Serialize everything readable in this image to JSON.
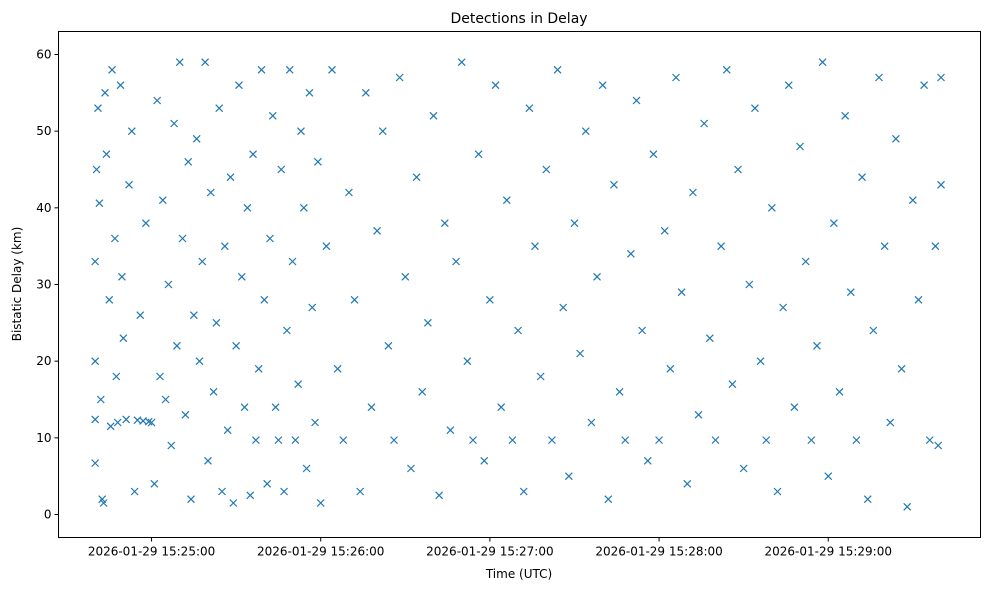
{
  "chart_data": {
    "type": "scatter",
    "title": "Detections in Delay",
    "xlabel": "Time (UTC)",
    "ylabel": "Bistatic Delay (km)",
    "marker": "x",
    "color": "#1f77b4",
    "x_units": "seconds after 2026-01-29 15:24:40 UTC",
    "xlim": [
      -13,
      314
    ],
    "ylim": [
      -3,
      63
    ],
    "xticks": [
      {
        "value": 20,
        "label": "2026-01-29 15:25:00"
      },
      {
        "value": 80,
        "label": "2026-01-29 15:26:00"
      },
      {
        "value": 140,
        "label": "2026-01-29 15:27:00"
      },
      {
        "value": 200,
        "label": "2026-01-29 15:28:00"
      },
      {
        "value": 260,
        "label": "2026-01-29 15:29:00"
      }
    ],
    "yticks": [
      0,
      10,
      20,
      30,
      40,
      50,
      60
    ],
    "grid": false,
    "points": [
      [
        0,
        6.7
      ],
      [
        0,
        12.4
      ],
      [
        0,
        20
      ],
      [
        0,
        33
      ],
      [
        0.5,
        45
      ],
      [
        1,
        53
      ],
      [
        1.5,
        40.6
      ],
      [
        2,
        15
      ],
      [
        2.5,
        2
      ],
      [
        3,
        1.5
      ],
      [
        3.5,
        55
      ],
      [
        4,
        47
      ],
      [
        5,
        28
      ],
      [
        5.5,
        11.5
      ],
      [
        6,
        58
      ],
      [
        7,
        36
      ],
      [
        7.5,
        18
      ],
      [
        8,
        12
      ],
      [
        9,
        56
      ],
      [
        9.5,
        31
      ],
      [
        10,
        23
      ],
      [
        11,
        12.4
      ],
      [
        12,
        43
      ],
      [
        13,
        50
      ],
      [
        14,
        3
      ],
      [
        15,
        12.3
      ],
      [
        16,
        26
      ],
      [
        17,
        12.2
      ],
      [
        18,
        38
      ],
      [
        19,
        12.1
      ],
      [
        20,
        12
      ],
      [
        21,
        4
      ],
      [
        22,
        54
      ],
      [
        23,
        18
      ],
      [
        24,
        41
      ],
      [
        25,
        15
      ],
      [
        26,
        30
      ],
      [
        27,
        9
      ],
      [
        28,
        51
      ],
      [
        29,
        22
      ],
      [
        30,
        59
      ],
      [
        31,
        36
      ],
      [
        32,
        13
      ],
      [
        33,
        46
      ],
      [
        34,
        2
      ],
      [
        35,
        26
      ],
      [
        36,
        49
      ],
      [
        37,
        20
      ],
      [
        38,
        33
      ],
      [
        39,
        59
      ],
      [
        40,
        7
      ],
      [
        41,
        42
      ],
      [
        42,
        16
      ],
      [
        43,
        25
      ],
      [
        44,
        53
      ],
      [
        45,
        3
      ],
      [
        46,
        35
      ],
      [
        47,
        11
      ],
      [
        48,
        44
      ],
      [
        49,
        1.5
      ],
      [
        50,
        22
      ],
      [
        51,
        56
      ],
      [
        52,
        31
      ],
      [
        53,
        14
      ],
      [
        54,
        40
      ],
      [
        55,
        2.5
      ],
      [
        56,
        47
      ],
      [
        57,
        9.7
      ],
      [
        58,
        19
      ],
      [
        59,
        58
      ],
      [
        60,
        28
      ],
      [
        61,
        4
      ],
      [
        62,
        36
      ],
      [
        63,
        52
      ],
      [
        64,
        14
      ],
      [
        65,
        9.7
      ],
      [
        66,
        45
      ],
      [
        67,
        3
      ],
      [
        68,
        24
      ],
      [
        69,
        58
      ],
      [
        70,
        33
      ],
      [
        71,
        9.7
      ],
      [
        72,
        17
      ],
      [
        73,
        50
      ],
      [
        74,
        40
      ],
      [
        75,
        6
      ],
      [
        76,
        55
      ],
      [
        77,
        27
      ],
      [
        78,
        12
      ],
      [
        79,
        46
      ],
      [
        80,
        1.5
      ],
      [
        82,
        35
      ],
      [
        84,
        58
      ],
      [
        86,
        19
      ],
      [
        88,
        9.7
      ],
      [
        90,
        42
      ],
      [
        92,
        28
      ],
      [
        94,
        3
      ],
      [
        96,
        55
      ],
      [
        98,
        14
      ],
      [
        100,
        37
      ],
      [
        102,
        50
      ],
      [
        104,
        22
      ],
      [
        106,
        9.7
      ],
      [
        108,
        57
      ],
      [
        110,
        31
      ],
      [
        112,
        6
      ],
      [
        114,
        44
      ],
      [
        116,
        16
      ],
      [
        118,
        25
      ],
      [
        120,
        52
      ],
      [
        122,
        2.5
      ],
      [
        124,
        38
      ],
      [
        126,
        11
      ],
      [
        128,
        33
      ],
      [
        130,
        59
      ],
      [
        132,
        20
      ],
      [
        134,
        9.7
      ],
      [
        136,
        47
      ],
      [
        138,
        7
      ],
      [
        140,
        28
      ],
      [
        142,
        56
      ],
      [
        144,
        14
      ],
      [
        146,
        41
      ],
      [
        148,
        9.7
      ],
      [
        150,
        24
      ],
      [
        152,
        3
      ],
      [
        154,
        53
      ],
      [
        156,
        35
      ],
      [
        158,
        18
      ],
      [
        160,
        45
      ],
      [
        162,
        9.7
      ],
      [
        164,
        58
      ],
      [
        166,
        27
      ],
      [
        168,
        5
      ],
      [
        170,
        38
      ],
      [
        172,
        21
      ],
      [
        174,
        50
      ],
      [
        176,
        12
      ],
      [
        178,
        31
      ],
      [
        180,
        56
      ],
      [
        182,
        2
      ],
      [
        184,
        43
      ],
      [
        186,
        16
      ],
      [
        188,
        9.7
      ],
      [
        190,
        34
      ],
      [
        192,
        54
      ],
      [
        194,
        24
      ],
      [
        196,
        7
      ],
      [
        198,
        47
      ],
      [
        200,
        9.7
      ],
      [
        202,
        37
      ],
      [
        204,
        19
      ],
      [
        206,
        57
      ],
      [
        208,
        29
      ],
      [
        210,
        4
      ],
      [
        212,
        42
      ],
      [
        214,
        13
      ],
      [
        216,
        51
      ],
      [
        218,
        23
      ],
      [
        220,
        9.7
      ],
      [
        222,
        35
      ],
      [
        224,
        58
      ],
      [
        226,
        17
      ],
      [
        228,
        45
      ],
      [
        230,
        6
      ],
      [
        232,
        30
      ],
      [
        234,
        53
      ],
      [
        236,
        20
      ],
      [
        238,
        9.7
      ],
      [
        240,
        40
      ],
      [
        242,
        3
      ],
      [
        244,
        27
      ],
      [
        246,
        56
      ],
      [
        248,
        14
      ],
      [
        250,
        48
      ],
      [
        252,
        33
      ],
      [
        254,
        9.7
      ],
      [
        256,
        22
      ],
      [
        258,
        59
      ],
      [
        260,
        5
      ],
      [
        262,
        38
      ],
      [
        264,
        16
      ],
      [
        266,
        52
      ],
      [
        268,
        29
      ],
      [
        270,
        9.7
      ],
      [
        272,
        44
      ],
      [
        274,
        2
      ],
      [
        276,
        24
      ],
      [
        278,
        57
      ],
      [
        280,
        35
      ],
      [
        282,
        12
      ],
      [
        284,
        49
      ],
      [
        286,
        19
      ],
      [
        288,
        1
      ],
      [
        290,
        41
      ],
      [
        292,
        28
      ],
      [
        294,
        56
      ],
      [
        296,
        9.7
      ],
      [
        298,
        35
      ],
      [
        299,
        9
      ],
      [
        300,
        43
      ],
      [
        300,
        57
      ]
    ]
  }
}
